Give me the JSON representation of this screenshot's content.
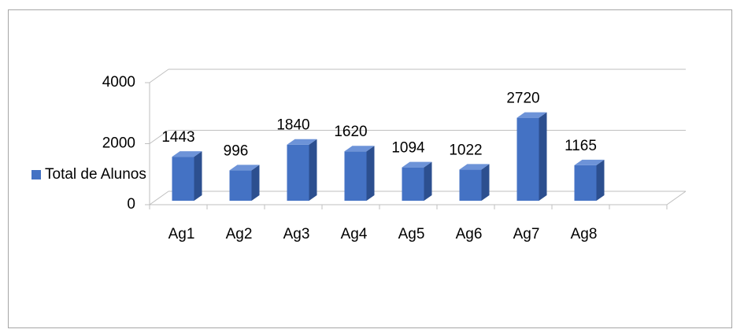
{
  "chart_data": {
    "type": "bar3d",
    "categories": [
      "Ag1",
      "Ag2",
      "Ag3",
      "Ag4",
      "Ag5",
      "Ag6",
      "Ag7",
      "Ag8",
      null
    ],
    "series": [
      {
        "name": "Total de Alunos",
        "color": "#4472c4",
        "values": [
          1443,
          996,
          1840,
          1620,
          1094,
          1022,
          2720,
          1165,
          null
        ]
      }
    ],
    "ylim": [
      0,
      4000
    ],
    "yticks": [
      0,
      2000,
      4000
    ],
    "grid": true,
    "legend": "left"
  }
}
